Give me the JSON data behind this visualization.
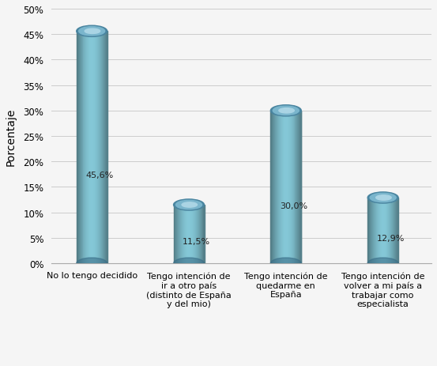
{
  "categories": [
    "No lo tengo decidido",
    "Tengo intención de\nir a otro país\n(distinto de España\ny del mio)",
    "Tengo intención de\nquedarme en\nEspaña",
    "Tengo intención de\nvolver a mi país a\ntrabajar como\nespecialista"
  ],
  "values": [
    45.6,
    11.5,
    30.0,
    12.9
  ],
  "labels": [
    "45,6%",
    "11,5%",
    "30,0%",
    "12,9%"
  ],
  "bar_color_left": "#7ab5d0",
  "bar_color_mid": "#5b9ab8",
  "bar_color_right": "#4a85a0",
  "bar_color_top_dark": "#4a85a0",
  "bar_color_top_light": "#9acfdf",
  "ylabel": "Porcentaje",
  "ylim": [
    0,
    50
  ],
  "yticks": [
    0,
    5,
    10,
    15,
    20,
    25,
    30,
    35,
    40,
    45,
    50
  ],
  "ytick_labels": [
    "0%",
    "5%",
    "10%",
    "15%",
    "20%",
    "25%",
    "30%",
    "35%",
    "40%",
    "45%",
    "50%"
  ],
  "background_color": "#f5f5f5",
  "plot_bg_color": "#f0f0f0",
  "grid_color": "#cccccc",
  "label_fontsize": 8,
  "value_fontsize": 8,
  "ylabel_fontsize": 10
}
